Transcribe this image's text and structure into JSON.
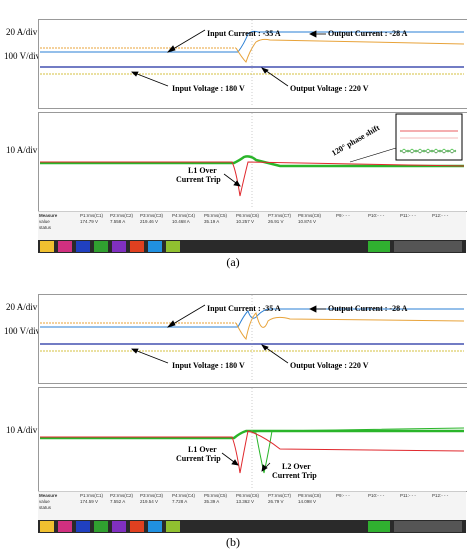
{
  "panels": [
    {
      "id": "a",
      "caption": "(a)",
      "scale_labels": {
        "top1": "20 A/div",
        "top2": "100 V/div",
        "bottom": "10 A/div"
      },
      "annotations": {
        "input_current": "Input Current : -35 A",
        "output_current": "Output Current : -28 A",
        "input_voltage": "Input Voltage : 180 V",
        "output_voltage": "Output Voltage : 220 V",
        "trip1_l1": "L1 Over",
        "trip1_l2": "Current Trip",
        "phase": "120° phase shift"
      },
      "measure": {
        "header": "Measure",
        "rows": [
          "value",
          "status"
        ],
        "params": [
          "P1:rms(C1)",
          "P2:rms(C2)",
          "P3:rms(C3)",
          "P4:rms(C4)",
          "P5:rms(C5)",
          "P6:rms(C6)",
          "P7:rms(C7)",
          "P8:rms(C8)",
          "P9:- - -",
          "P10:- - -",
          "P11:- - -",
          "P12:- - -"
        ],
        "values": [
          "174.79 V",
          "7.558 A",
          "219.46 V",
          "10.468 A",
          "35.19 A",
          "10.257 V",
          "26.91 V",
          "10.874 V",
          "",
          "",
          "",
          ""
        ]
      }
    },
    {
      "id": "b",
      "caption": "(b)",
      "scale_labels": {
        "top1": "20 A/div",
        "top2": "100 V/div",
        "bottom": "10 A/div"
      },
      "annotations": {
        "input_current": "Input Current : -35 A",
        "output_current": "Output Current : -28 A",
        "input_voltage": "Input Voltage : 180 V",
        "output_voltage": "Output Voltage : 220 V",
        "trip1_l1": "L1 Over",
        "trip1_l2": "Current Trip",
        "trip2_l1": "L2 Over",
        "trip2_l2": "Current Trip"
      },
      "measure": {
        "header": "Measure",
        "rows": [
          "value",
          "status"
        ],
        "params": [
          "P1:rms(C1)",
          "P2:rms(C2)",
          "P3:rms(C3)",
          "P4:rms(C4)",
          "P5:rms(C5)",
          "P6:rms(C6)",
          "P7:rms(C7)",
          "P8:rms(C8)",
          "P9:- - -",
          "P10:- - -",
          "P11:- - -",
          "P12:- - -"
        ],
        "values": [
          "174.59 V",
          "7.552 A",
          "219.54 V",
          "7.728 A",
          "35.39 A",
          "13.362 V",
          "26.79 V",
          "14.098 V",
          "",
          "",
          "",
          ""
        ]
      }
    }
  ],
  "colors": {
    "input_current": "#2a7fd4",
    "output_current": "#e8a33a",
    "input_voltage": "#d6c040",
    "output_voltage": "#1f2fa0",
    "l1": "#e0282d",
    "l2": "#2ab52a",
    "l3": "#3c8a3c"
  }
}
